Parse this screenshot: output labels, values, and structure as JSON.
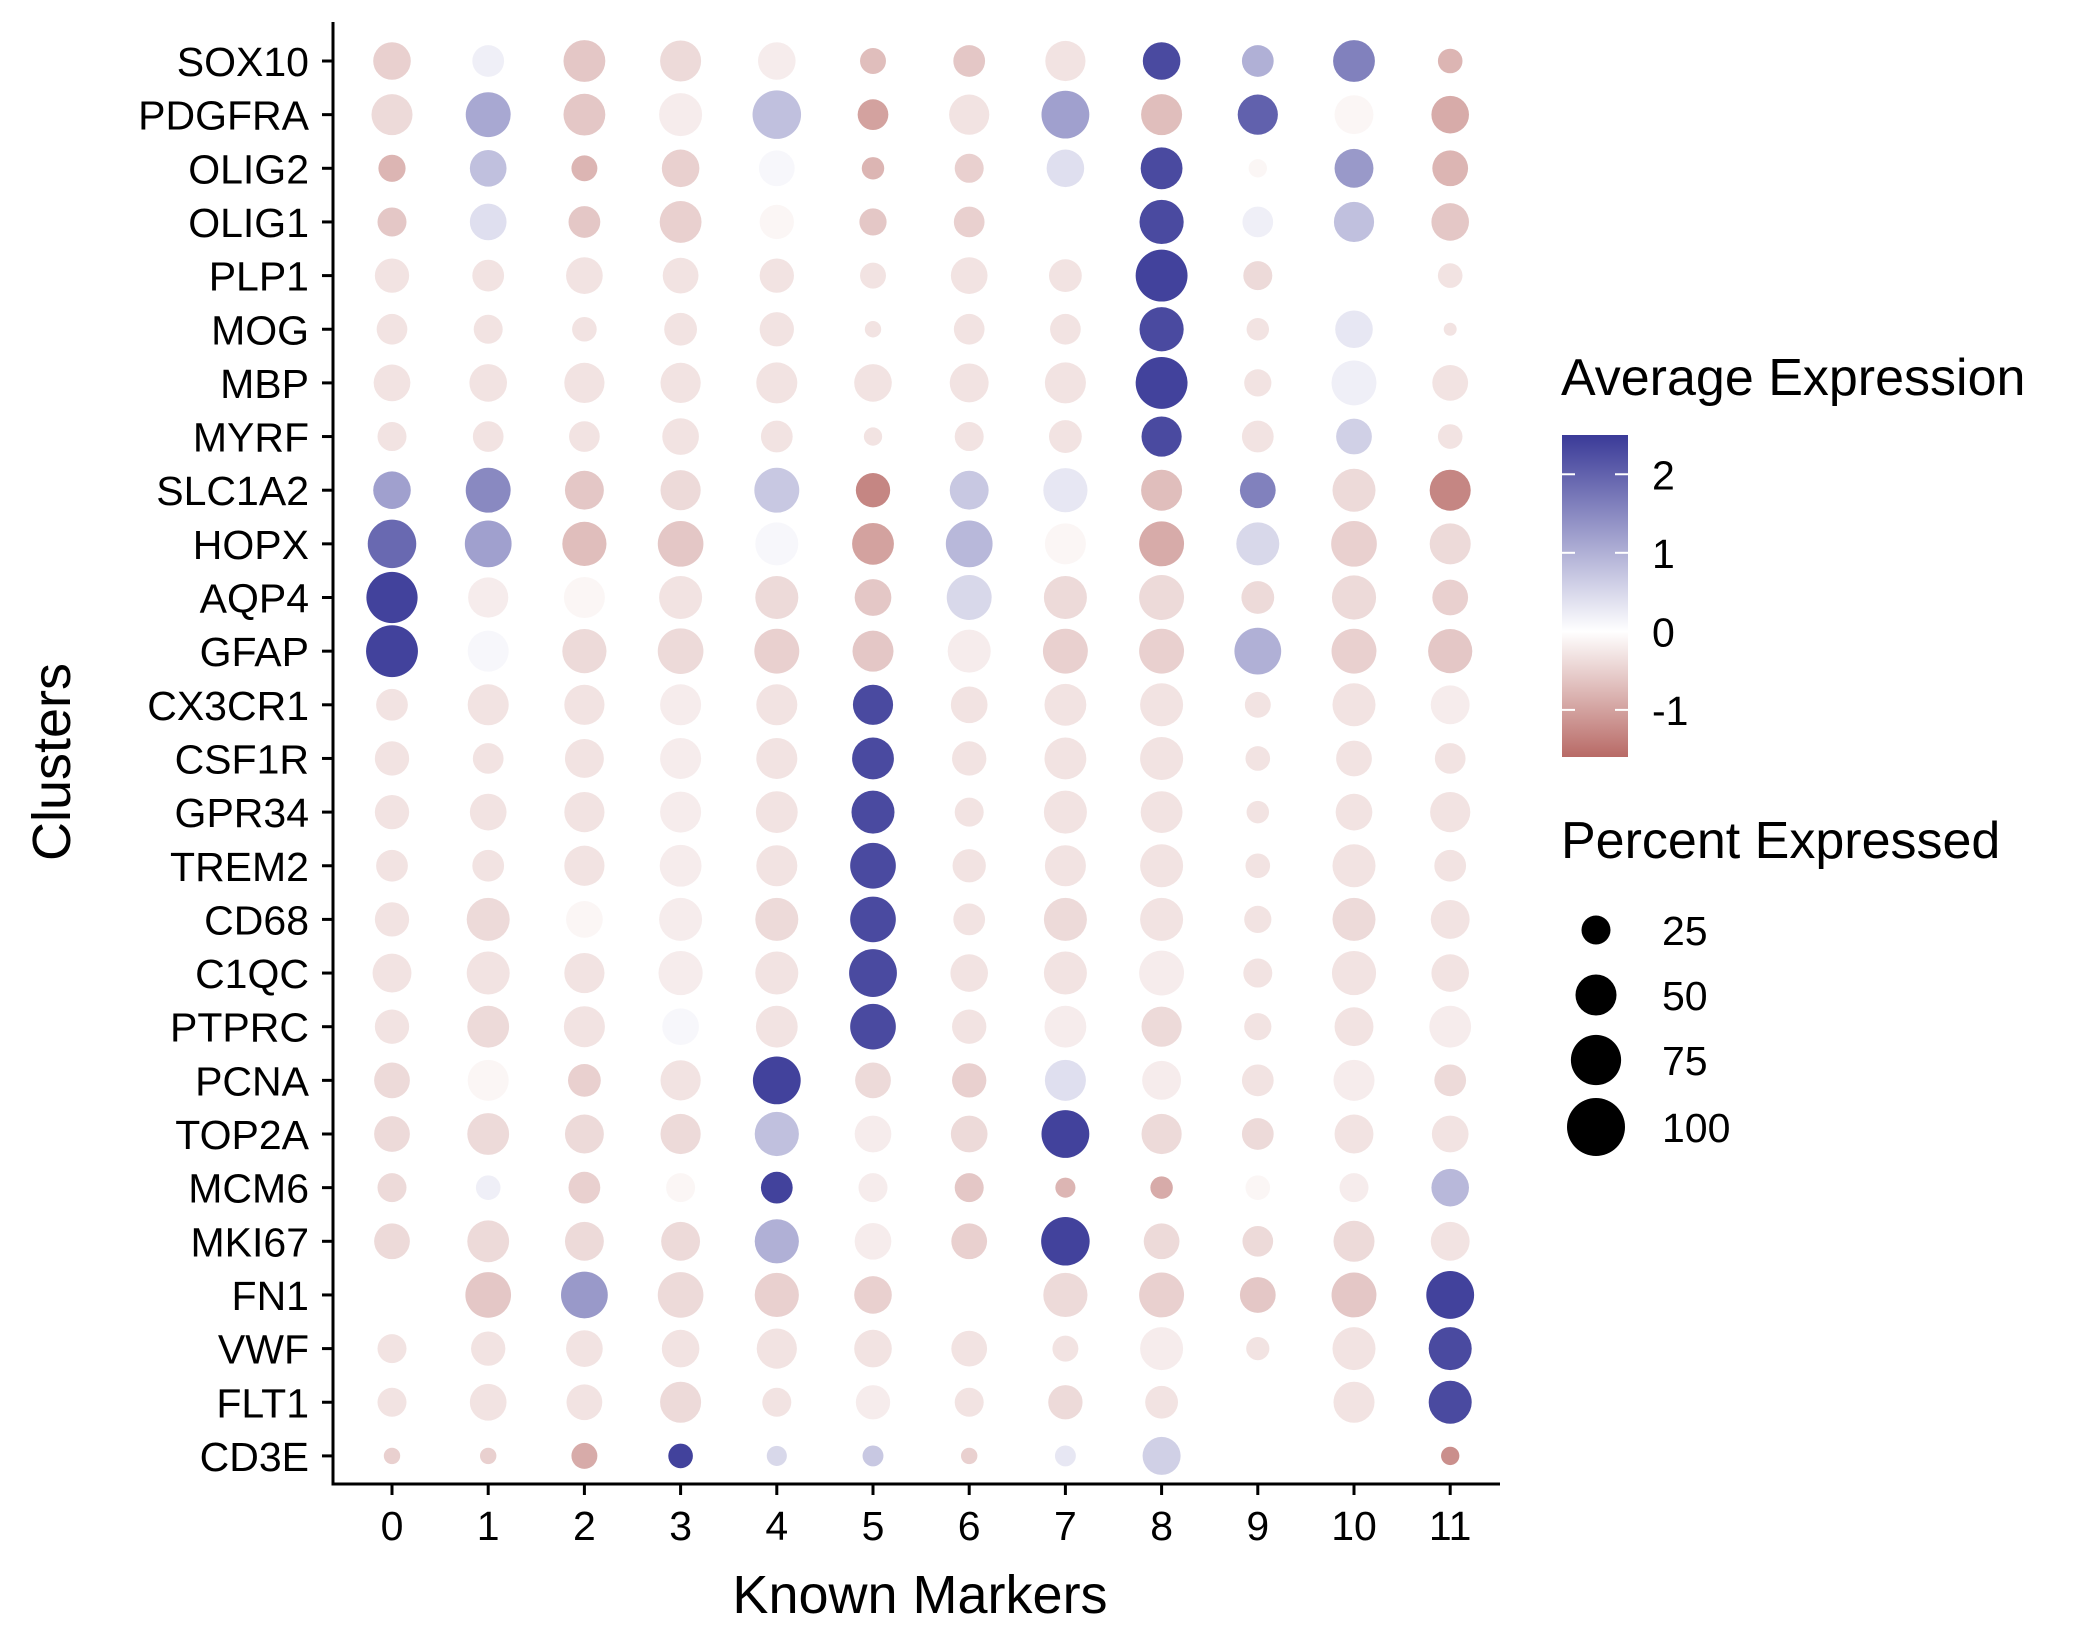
{
  "chart_data": {
    "type": "dotplot",
    "xlabel": "Known Markers",
    "ylabel": "Clusters",
    "categories": [
      "0",
      "1",
      "2",
      "3",
      "4",
      "5",
      "6",
      "7",
      "8",
      "9",
      "10",
      "11"
    ],
    "genes": [
      "SOX10",
      "PDGFRA",
      "OLIG2",
      "OLIG1",
      "PLP1",
      "MOG",
      "MBP",
      "MYRF",
      "SLC1A2",
      "HOPX",
      "AQP4",
      "GFAP",
      "CX3CR1",
      "CSF1R",
      "GPR34",
      "TREM2",
      "CD68",
      "C1QC",
      "PTPRC",
      "PCNA",
      "TOP2A",
      "MCM6",
      "MKI67",
      "FN1",
      "VWF",
      "FLT1",
      "CD3E"
    ],
    "color_legend": {
      "title": "Average Expression",
      "ticks": [
        2,
        1,
        0,
        -1
      ],
      "range": [
        -1.6,
        2.5
      ],
      "low_color": "#B86A66",
      "mid_color": "#FFFFFF",
      "high_color": "#3A3A98"
    },
    "size_legend": {
      "title": "Percent Expressed",
      "ticks": [
        25,
        50,
        75,
        100
      ]
    },
    "percent": [
      [
        42,
        30,
        52,
        50,
        42,
        20,
        30,
        48,
        42,
        30,
        52,
        18
      ],
      [
        50,
        60,
        52,
        55,
        70,
        28,
        48,
        68,
        50,
        48,
        45,
        42
      ],
      [
        22,
        40,
        20,
        42,
        38,
        15,
        25,
        42,
        52,
        10,
        45,
        38
      ],
      [
        25,
        40,
        30,
        52,
        35,
        22,
        28,
        38,
        58,
        28,
        48,
        42
      ],
      [
        35,
        30,
        40,
        38,
        35,
        20,
        40,
        32,
        80,
        25,
        10,
        18
      ],
      [
        28,
        25,
        18,
        32,
        35,
        8,
        28,
        28,
        58,
        15,
        42,
        5
      ],
      [
        40,
        42,
        48,
        48,
        50,
        42,
        45,
        50,
        80,
        22,
        60,
        38
      ],
      [
        25,
        28,
        28,
        40,
        30,
        10,
        25,
        32,
        48,
        30,
        38,
        18
      ],
      [
        42,
        60,
        45,
        48,
        60,
        35,
        45,
        58,
        50,
        38,
        55,
        50
      ],
      [
        70,
        65,
        58,
        62,
        55,
        52,
        65,
        50,
        60,
        55,
        62,
        50
      ],
      [
        78,
        48,
        50,
        55,
        55,
        40,
        60,
        55,
        60,
        32,
        58,
        38
      ],
      [
        80,
        50,
        58,
        62,
        60,
        50,
        55,
        60,
        60,
        65,
        60,
        58
      ],
      [
        30,
        50,
        48,
        50,
        50,
        48,
        40,
        52,
        55,
        20,
        55,
        45
      ],
      [
        35,
        28,
        45,
        50,
        50,
        52,
        35,
        52,
        55,
        18,
        38,
        28
      ],
      [
        35,
        40,
        48,
        50,
        52,
        55,
        25,
        55,
        52,
        15,
        40,
        48
      ],
      [
        30,
        30,
        48,
        52,
        50,
        62,
        33,
        50,
        55,
        18,
        55,
        30
      ],
      [
        35,
        55,
        40,
        55,
        55,
        62,
        30,
        55,
        55,
        22,
        55,
        45
      ],
      [
        45,
        55,
        48,
        58,
        55,
        68,
        42,
        55,
        60,
        25,
        58,
        42
      ],
      [
        35,
        52,
        50,
        40,
        52,
        62,
        35,
        52,
        48,
        22,
        45,
        52
      ],
      [
        38,
        50,
        32,
        48,
        68,
        38,
        35,
        50,
        45,
        30,
        50,
        30
      ],
      [
        38,
        52,
        45,
        48,
        58,
        40,
        40,
        68,
        48,
        30,
        45,
        40
      ],
      [
        25,
        18,
        30,
        25,
        30,
        25,
        25,
        12,
        15,
        18,
        25,
        42
      ],
      [
        38,
        52,
        45,
        45,
        58,
        40,
        38,
        70,
        38,
        28,
        50,
        45
      ],
      [
        45,
        62,
        65,
        62,
        58,
        42,
        40,
        58,
        60,
        38,
        60,
        68
      ],
      [
        25,
        35,
        40,
        42,
        48,
        42,
        38,
        20,
        55,
        16,
        55,
        55
      ],
      [
        25,
        40,
        38,
        50,
        25,
        35,
        25,
        35,
        32,
        5,
        50,
        55
      ],
      [
        8,
        8,
        20,
        18,
        12,
        13,
        8,
        13,
        43,
        10,
        8,
        10
      ]
    ],
    "expression": [
      [
        -0.5,
        0.2,
        -0.6,
        -0.4,
        -0.2,
        -0.7,
        -0.6,
        -0.3,
        2.3,
        1.0,
        1.6,
        -0.8
      ],
      [
        -0.4,
        1.1,
        -0.6,
        -0.2,
        0.8,
        -1.0,
        -0.3,
        1.2,
        -0.7,
        2.0,
        -0.1,
        -0.9
      ],
      [
        -0.8,
        0.8,
        -0.8,
        -0.5,
        0.1,
        -0.8,
        -0.5,
        0.4,
        2.3,
        -0.1,
        1.3,
        -0.8
      ],
      [
        -0.6,
        0.4,
        -0.6,
        -0.5,
        -0.1,
        -0.6,
        -0.5,
        0.0,
        2.3,
        0.2,
        0.8,
        -0.6
      ],
      [
        -0.3,
        -0.3,
        -0.3,
        -0.3,
        -0.3,
        -0.3,
        -0.3,
        -0.3,
        2.4,
        -0.4,
        0.0,
        -0.3
      ],
      [
        -0.3,
        -0.3,
        -0.3,
        -0.3,
        -0.3,
        -0.3,
        -0.3,
        -0.3,
        2.3,
        -0.3,
        0.3,
        -0.3
      ],
      [
        -0.3,
        -0.3,
        -0.3,
        -0.3,
        -0.3,
        -0.3,
        -0.3,
        -0.3,
        2.4,
        -0.3,
        0.2,
        -0.3
      ],
      [
        -0.3,
        -0.3,
        -0.3,
        -0.3,
        -0.3,
        -0.3,
        -0.3,
        -0.3,
        2.3,
        -0.3,
        0.6,
        -0.3
      ],
      [
        1.2,
        1.5,
        -0.6,
        -0.4,
        0.7,
        -1.3,
        0.7,
        0.3,
        -0.7,
        1.6,
        -0.4,
        -1.3
      ],
      [
        1.9,
        1.2,
        -0.7,
        -0.6,
        0.1,
        -1.0,
        0.9,
        -0.1,
        -0.9,
        0.5,
        -0.5,
        -0.4
      ],
      [
        2.4,
        -0.2,
        -0.1,
        -0.3,
        -0.4,
        -0.6,
        0.5,
        -0.4,
        -0.4,
        -0.4,
        -0.4,
        -0.5
      ],
      [
        2.4,
        0.1,
        -0.4,
        -0.4,
        -0.5,
        -0.6,
        -0.2,
        -0.5,
        -0.5,
        1.0,
        -0.5,
        -0.6
      ],
      [
        -0.3,
        -0.3,
        -0.3,
        -0.2,
        -0.3,
        2.3,
        -0.3,
        -0.3,
        -0.3,
        -0.3,
        -0.3,
        -0.2
      ],
      [
        -0.3,
        -0.3,
        -0.3,
        -0.2,
        -0.3,
        2.3,
        -0.3,
        -0.3,
        -0.3,
        -0.3,
        -0.3,
        -0.3
      ],
      [
        -0.3,
        -0.3,
        -0.3,
        -0.2,
        -0.3,
        2.3,
        -0.3,
        -0.3,
        -0.3,
        -0.3,
        -0.3,
        -0.3
      ],
      [
        -0.3,
        -0.3,
        -0.3,
        -0.2,
        -0.3,
        2.3,
        -0.3,
        -0.3,
        -0.3,
        -0.3,
        -0.3,
        -0.3
      ],
      [
        -0.3,
        -0.4,
        -0.1,
        -0.2,
        -0.4,
        2.3,
        -0.3,
        -0.4,
        -0.3,
        -0.3,
        -0.4,
        -0.3
      ],
      [
        -0.3,
        -0.3,
        -0.3,
        -0.2,
        -0.3,
        2.3,
        -0.3,
        -0.3,
        -0.2,
        -0.3,
        -0.3,
        -0.3
      ],
      [
        -0.3,
        -0.4,
        -0.3,
        0.1,
        -0.3,
        2.3,
        -0.3,
        -0.2,
        -0.4,
        -0.3,
        -0.3,
        -0.2
      ],
      [
        -0.4,
        -0.1,
        -0.5,
        -0.3,
        2.4,
        -0.4,
        -0.5,
        0.4,
        -0.2,
        -0.3,
        -0.2,
        -0.4
      ],
      [
        -0.4,
        -0.4,
        -0.4,
        -0.4,
        0.8,
        -0.2,
        -0.4,
        2.4,
        -0.4,
        -0.4,
        -0.3,
        -0.3
      ],
      [
        -0.4,
        0.2,
        -0.5,
        -0.1,
        2.4,
        -0.2,
        -0.6,
        -0.8,
        -0.9,
        -0.1,
        -0.2,
        0.9
      ],
      [
        -0.4,
        -0.4,
        -0.4,
        -0.4,
        1.0,
        -0.2,
        -0.5,
        2.4,
        -0.4,
        -0.4,
        -0.4,
        -0.3
      ],
      [
        0.0,
        -0.6,
        1.3,
        -0.4,
        -0.5,
        -0.5,
        0.0,
        -0.4,
        -0.5,
        -0.6,
        -0.6,
        2.4
      ],
      [
        -0.3,
        -0.3,
        -0.3,
        -0.3,
        -0.3,
        -0.3,
        -0.3,
        -0.3,
        -0.2,
        -0.3,
        -0.3,
        2.3
      ],
      [
        -0.3,
        -0.3,
        -0.3,
        -0.4,
        -0.3,
        -0.2,
        -0.3,
        -0.4,
        -0.3,
        0.0,
        -0.3,
        2.3
      ],
      [
        -0.5,
        -0.5,
        -0.9,
        2.4,
        0.5,
        0.7,
        -0.5,
        0.3,
        0.6,
        0.0,
        0.0,
        -1.2
      ]
    ]
  }
}
